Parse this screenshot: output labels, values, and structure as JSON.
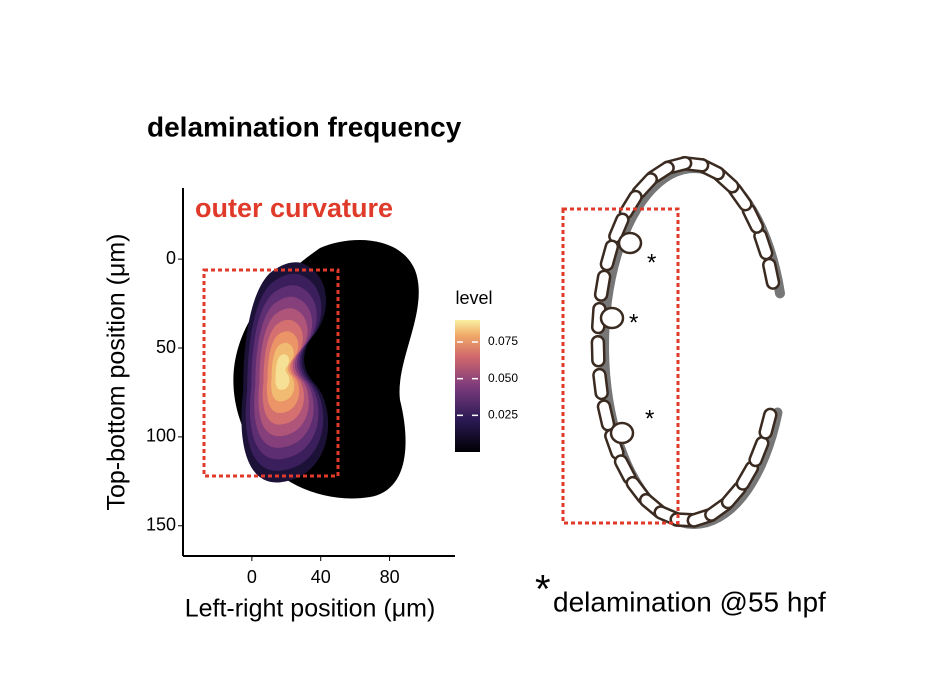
{
  "chart_data": {
    "type": "density",
    "title": "delamination frequency",
    "annotation": "outer curvature",
    "x_label": "Left-right position (μm)",
    "y_label": "Top-bottom position (μm)",
    "xlim": [
      -40,
      118
    ],
    "xticks": [
      0,
      40,
      80
    ],
    "ylim": [
      -40,
      167
    ],
    "yticks": [
      0,
      50,
      100,
      150
    ],
    "y_reversed": true,
    "colorbar": {
      "title": "level",
      "lim": [
        0,
        0.09
      ],
      "ticks": [
        0.025,
        0.05,
        0.075
      ],
      "tick_labels": [
        "0.025",
        "0.050",
        "0.075"
      ]
    },
    "diagram": {
      "markers": [
        "*",
        "*",
        "*"
      ],
      "caption_marker": "*",
      "caption": "delamination @55 hpf"
    }
  }
}
